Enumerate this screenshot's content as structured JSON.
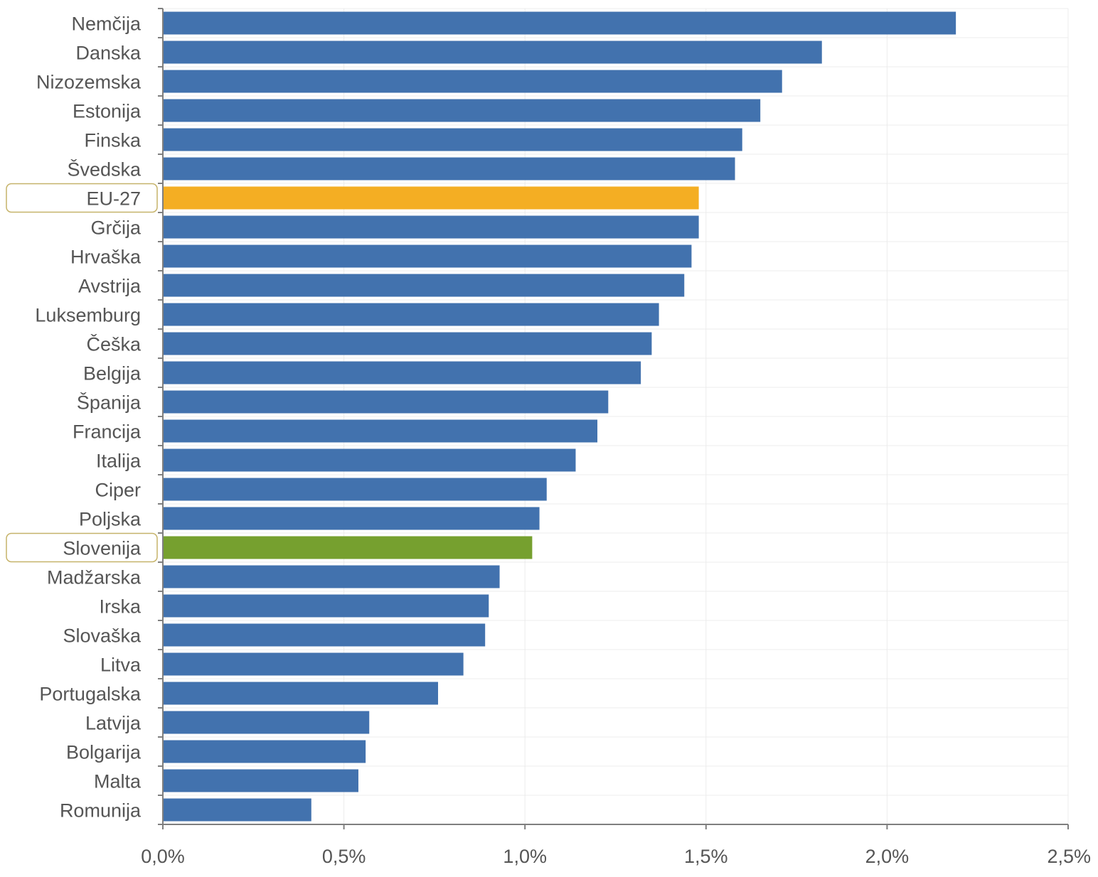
{
  "chart_data": {
    "type": "bar",
    "orientation": "horizontal",
    "categories": [
      "Nemčija",
      "Danska",
      "Nizozemska",
      "Estonija",
      "Finska",
      "Švedska",
      "EU-27",
      "Grčija",
      "Hrvaška",
      "Avstrija",
      "Luksemburg",
      "Češka",
      "Belgija",
      "Španija",
      "Francija",
      "Italija",
      "Ciper",
      "Poljska",
      "Slovenija",
      "Madžarska",
      "Irska",
      "Slovaška",
      "Litva",
      "Portugalska",
      "Latvija",
      "Bolgarija",
      "Malta",
      "Romunija"
    ],
    "values": [
      2.19,
      1.82,
      1.71,
      1.65,
      1.6,
      1.58,
      1.48,
      1.48,
      1.46,
      1.44,
      1.37,
      1.35,
      1.32,
      1.23,
      1.2,
      1.14,
      1.06,
      1.04,
      1.02,
      0.93,
      0.9,
      0.89,
      0.83,
      0.76,
      0.57,
      0.56,
      0.54,
      0.41
    ],
    "xlim": [
      0,
      2.5
    ],
    "xticks": [
      "0,0%",
      "0,5%",
      "1,0%",
      "1,5%",
      "2,0%",
      "2,5%"
    ],
    "grid": true,
    "colors": {
      "default": "#4272ae",
      "EU-27": "#f4ae23",
      "Slovenija": "#76a02f",
      "highlight_box": "#c6b36a"
    },
    "highlighted_categories": [
      "EU-27",
      "Slovenija"
    ]
  }
}
